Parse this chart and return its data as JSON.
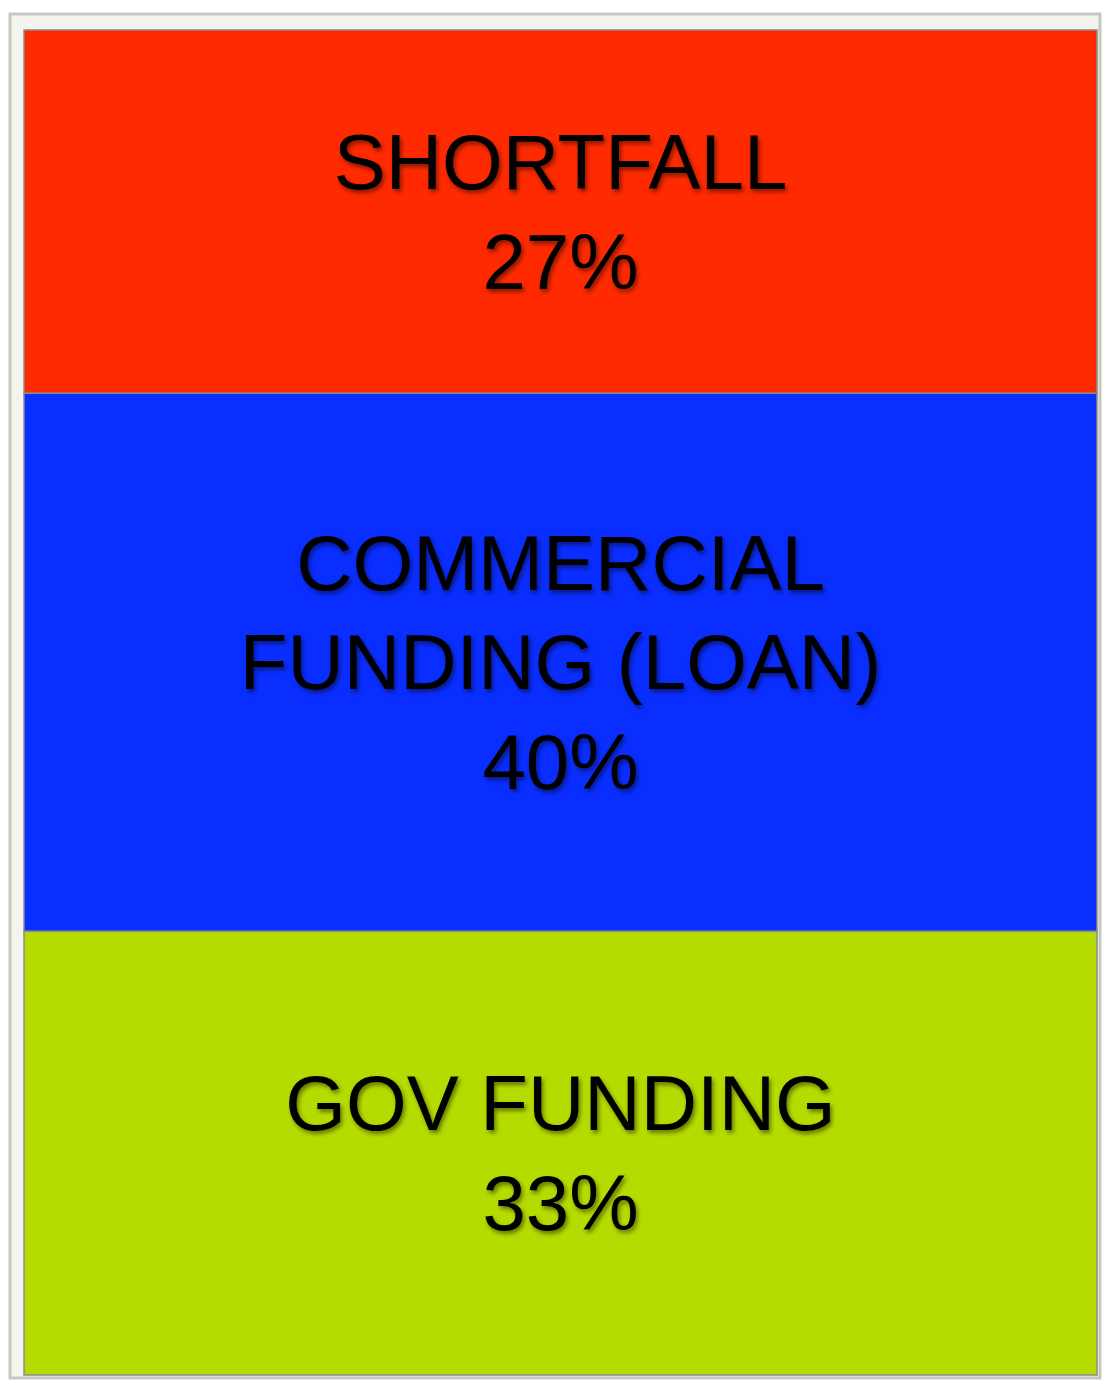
{
  "chart_data": {
    "type": "bar",
    "stacked": true,
    "categories": [
      null
    ],
    "series": [
      {
        "name": "GOV FUNDING",
        "color": "#b5dc00",
        "values": [
          33
        ],
        "value_labels": [
          "33%"
        ]
      },
      {
        "name": "COMMERCIAL FUNDING (LOAN)",
        "color": "#0a2eff",
        "values": [
          40
        ],
        "value_labels": [
          "40%"
        ]
      },
      {
        "name": "SHORTFALL",
        "color": "#ff2a00",
        "values": [
          27
        ],
        "value_labels": [
          "27%"
        ]
      }
    ]
  }
}
